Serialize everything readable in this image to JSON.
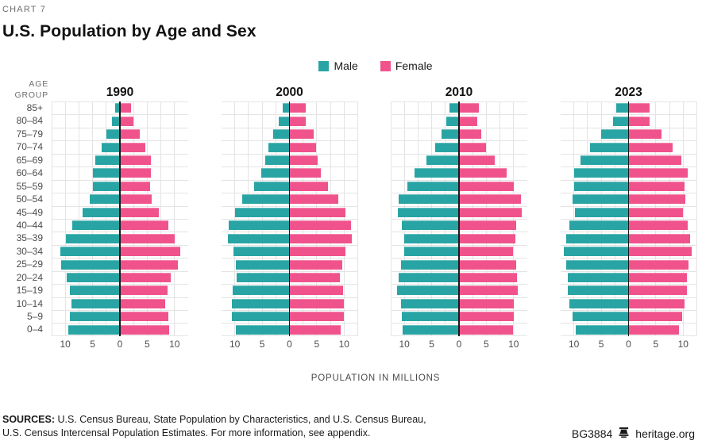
{
  "header": {
    "chart_label": "CHART 7",
    "title": "U.S. Population by Age and Sex"
  },
  "axis_head": {
    "age_group_label": "AGE GROUP"
  },
  "footer": {
    "sources_label": "SOURCES:",
    "sources_line1": "U.S. Census Bureau, State Population by Characteristics, and U.S. Census Bureau,",
    "sources_line2": "U.S. Census Intercensal Population Estimates. For more information, see appendix.",
    "report_id": "BG3884",
    "site": "heritage.org"
  },
  "colors": {
    "male": "#29A4A4",
    "female": "#F0538B",
    "gridline": "#e4e4e4",
    "axis": "#1a1a1a"
  },
  "chart_data": {
    "type": "bar",
    "subtype": "population-pyramid",
    "xlabel": "POPULATION IN MILLIONS",
    "grid": true,
    "legend_position": "top-center",
    "legend": [
      {
        "label": "Male",
        "color": "#29A4A4"
      },
      {
        "label": "Female",
        "color": "#F0538B"
      }
    ],
    "x_tick_labels": [
      "10",
      "5",
      "0",
      "5",
      "10"
    ],
    "x_tick_positions": [
      -10,
      -5,
      0,
      5,
      10
    ],
    "xlim_each_side": 12.5,
    "gridline_step": 2.5,
    "age_groups_top_to_bottom": [
      "85+",
      "80–84",
      "75–79",
      "70–74",
      "65–69",
      "60–64",
      "55–59",
      "50–54",
      "45–49",
      "40–44",
      "35–39",
      "30–34",
      "25–29",
      "20–24",
      "15–19",
      "10–14",
      "5–9",
      "0–4"
    ],
    "units": "millions",
    "pyramids": [
      {
        "year": "1990",
        "male": [
          0.9,
          1.4,
          2.4,
          3.4,
          4.5,
          5.0,
          5.0,
          5.5,
          6.8,
          8.7,
          9.9,
          10.9,
          10.7,
          9.7,
          9.1,
          8.8,
          9.2,
          9.4
        ],
        "female": [
          2.1,
          2.5,
          3.7,
          4.6,
          5.6,
          5.6,
          5.5,
          5.8,
          7.1,
          8.9,
          10.1,
          11.0,
          10.6,
          9.3,
          8.7,
          8.3,
          8.8,
          9.0
        ]
      },
      {
        "year": "2000",
        "male": [
          1.2,
          1.9,
          3.0,
          3.9,
          4.4,
          5.1,
          6.5,
          8.6,
          9.9,
          11.1,
          11.3,
          10.3,
          9.8,
          9.7,
          10.4,
          10.5,
          10.5,
          9.8
        ],
        "female": [
          3.0,
          3.0,
          4.4,
          4.9,
          5.1,
          5.7,
          7.0,
          9.0,
          10.2,
          11.3,
          11.4,
          10.2,
          9.6,
          9.3,
          9.8,
          10.0,
          10.0,
          9.4
        ]
      },
      {
        "year": "2010",
        "male": [
          1.8,
          2.3,
          3.2,
          4.3,
          5.9,
          8.1,
          9.5,
          11.0,
          11.2,
          10.4,
          10.1,
          10.0,
          10.6,
          11.0,
          11.3,
          10.6,
          10.4,
          10.3
        ],
        "female": [
          3.7,
          3.4,
          4.1,
          5.0,
          6.5,
          8.7,
          10.1,
          11.3,
          11.5,
          10.5,
          10.3,
          9.9,
          10.5,
          10.6,
          10.7,
          10.1,
          10.0,
          9.9
        ]
      },
      {
        "year": "2023",
        "male": [
          2.2,
          2.9,
          5.0,
          7.0,
          8.8,
          10.0,
          9.9,
          10.2,
          9.8,
          10.9,
          11.4,
          11.8,
          11.4,
          11.1,
          11.1,
          10.8,
          10.2,
          9.7
        ],
        "female": [
          3.9,
          3.8,
          6.1,
          8.0,
          9.7,
          10.8,
          10.3,
          10.4,
          9.9,
          10.9,
          11.2,
          11.6,
          11.0,
          10.7,
          10.7,
          10.3,
          9.8,
          9.3
        ]
      }
    ]
  }
}
